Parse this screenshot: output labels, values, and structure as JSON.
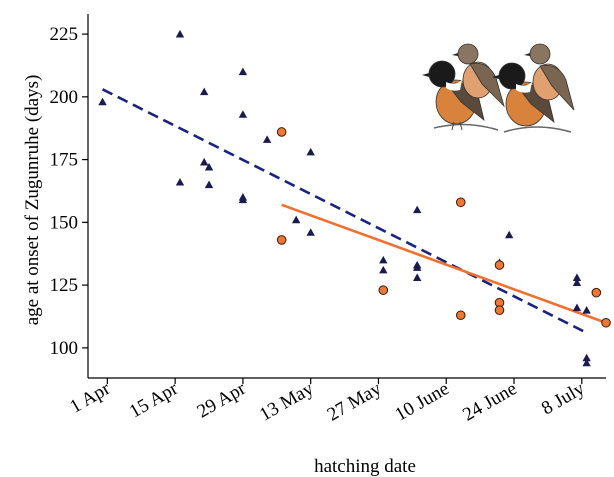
{
  "chart_data": {
    "type": "scatter",
    "title": "",
    "xlabel": "hatching date",
    "ylabel": "age at onset of Zugunruhe (days)",
    "xlim": [
      -4,
      103
    ],
    "ylim": [
      88,
      233
    ],
    "x_ticks": [
      {
        "value": 0,
        "label": "1 Apr"
      },
      {
        "value": 14,
        "label": "15 Apr"
      },
      {
        "value": 28,
        "label": "29 Apr"
      },
      {
        "value": 42,
        "label": "13 May"
      },
      {
        "value": 56,
        "label": "27 May"
      },
      {
        "value": 70,
        "label": "10 June"
      },
      {
        "value": 84,
        "label": "24 June"
      },
      {
        "value": 98,
        "label": "8 July"
      }
    ],
    "y_ticks": [
      100,
      125,
      150,
      175,
      200,
      225
    ],
    "grid": false,
    "series": [
      {
        "marker": "triangle",
        "color": "#1a1a4e",
        "points": [
          [
            -1,
            198
          ],
          [
            15,
            225
          ],
          [
            15,
            166
          ],
          [
            20,
            202
          ],
          [
            20,
            174
          ],
          [
            21,
            172
          ],
          [
            21,
            165
          ],
          [
            28,
            210
          ],
          [
            28,
            193
          ],
          [
            28,
            160
          ],
          [
            28,
            159
          ],
          [
            33,
            183
          ],
          [
            39,
            151
          ],
          [
            42,
            178
          ],
          [
            42,
            146
          ],
          [
            57,
            135
          ],
          [
            57,
            131
          ],
          [
            64,
            155
          ],
          [
            64,
            133
          ],
          [
            64,
            132
          ],
          [
            64,
            128
          ],
          [
            81,
            134
          ],
          [
            83,
            145
          ],
          [
            97,
            128
          ],
          [
            97,
            126
          ],
          [
            97,
            116
          ],
          [
            99,
            115
          ],
          [
            99,
            96
          ],
          [
            99,
            94
          ]
        ]
      },
      {
        "marker": "circle",
        "color": "#ee7733",
        "points": [
          [
            36,
            186
          ],
          [
            36,
            143
          ],
          [
            57,
            123
          ],
          [
            73,
            158
          ],
          [
            73,
            113
          ],
          [
            81,
            133
          ],
          [
            81,
            118
          ],
          [
            81,
            115
          ],
          [
            101,
            122
          ],
          [
            103,
            110
          ]
        ]
      }
    ],
    "fit_lines": [
      {
        "style": "dashed",
        "color": "#1a237e",
        "from": [
          -1,
          203
        ],
        "to": [
          99,
          106
        ]
      },
      {
        "style": "solid",
        "color": "#f07030",
        "from": [
          36,
          157
        ],
        "to": [
          103,
          110
        ]
      }
    ]
  },
  "illustration": {
    "icon": "stonechat-birds-icon",
    "colors": {
      "head": "#1a1a1a",
      "breast": "#d9823b",
      "collar": "#ffffff",
      "back": "#6b5a4a",
      "female_head": "#8a7560",
      "female_breast": "#e0a070"
    }
  }
}
